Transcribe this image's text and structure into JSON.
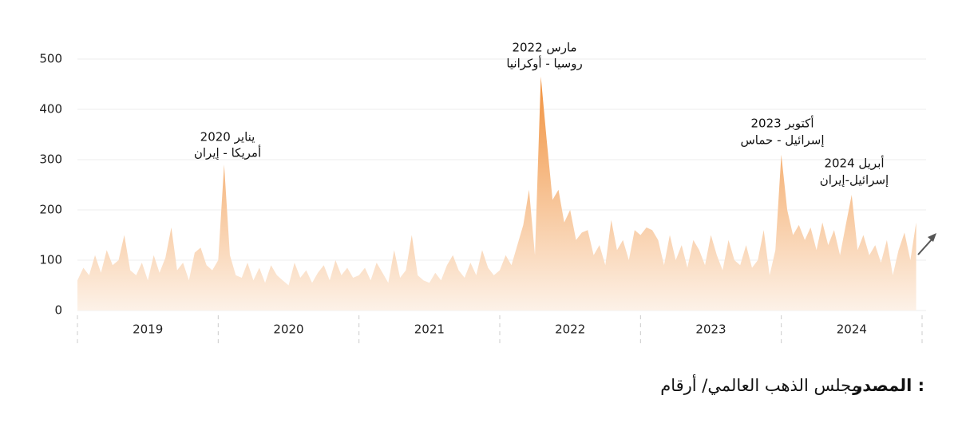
{
  "chart_data": {
    "type": "area",
    "x": [
      2019.0,
      2019.042,
      2019.083,
      2019.125,
      2019.167,
      2019.208,
      2019.25,
      2019.292,
      2019.333,
      2019.375,
      2019.417,
      2019.458,
      2019.5,
      2019.542,
      2019.583,
      2019.625,
      2019.667,
      2019.708,
      2019.75,
      2019.792,
      2019.833,
      2019.875,
      2019.917,
      2019.958,
      2020.0,
      2020.042,
      2020.083,
      2020.125,
      2020.167,
      2020.208,
      2020.25,
      2020.292,
      2020.333,
      2020.375,
      2020.417,
      2020.458,
      2020.5,
      2020.542,
      2020.583,
      2020.625,
      2020.667,
      2020.708,
      2020.75,
      2020.792,
      2020.833,
      2020.875,
      2020.917,
      2020.958,
      2021.0,
      2021.042,
      2021.083,
      2021.125,
      2021.167,
      2021.208,
      2021.25,
      2021.292,
      2021.333,
      2021.375,
      2021.417,
      2021.458,
      2021.5,
      2021.542,
      2021.583,
      2021.625,
      2021.667,
      2021.708,
      2021.75,
      2021.792,
      2021.833,
      2021.875,
      2021.917,
      2021.958,
      2022.0,
      2022.042,
      2022.083,
      2022.125,
      2022.167,
      2022.208,
      2022.25,
      2022.292,
      2022.333,
      2022.375,
      2022.417,
      2022.458,
      2022.5,
      2022.542,
      2022.583,
      2022.625,
      2022.667,
      2022.708,
      2022.75,
      2022.792,
      2022.833,
      2022.875,
      2022.917,
      2022.958,
      2023.0,
      2023.042,
      2023.083,
      2023.125,
      2023.167,
      2023.208,
      2023.25,
      2023.292,
      2023.333,
      2023.375,
      2023.417,
      2023.458,
      2023.5,
      2023.542,
      2023.583,
      2023.625,
      2023.667,
      2023.708,
      2023.75,
      2023.792,
      2023.833,
      2023.875,
      2023.917,
      2023.958,
      2024.0,
      2024.042,
      2024.083,
      2024.125,
      2024.167,
      2024.208,
      2024.25,
      2024.292,
      2024.333,
      2024.375,
      2024.417,
      2024.458,
      2024.5,
      2024.542,
      2024.583,
      2024.625,
      2024.667,
      2024.708,
      2024.75,
      2024.792,
      2024.833,
      2024.875,
      2024.917,
      2024.958
    ],
    "values": [
      60,
      85,
      70,
      110,
      75,
      120,
      90,
      100,
      150,
      80,
      70,
      95,
      60,
      110,
      75,
      105,
      165,
      80,
      95,
      60,
      115,
      125,
      90,
      80,
      100,
      290,
      110,
      70,
      65,
      95,
      60,
      85,
      55,
      90,
      70,
      60,
      50,
      95,
      65,
      80,
      55,
      75,
      90,
      60,
      100,
      70,
      85,
      65,
      70,
      85,
      60,
      95,
      75,
      55,
      120,
      65,
      80,
      150,
      70,
      60,
      55,
      75,
      60,
      90,
      110,
      80,
      65,
      95,
      70,
      120,
      85,
      70,
      80,
      110,
      90,
      130,
      170,
      240,
      110,
      465,
      340,
      220,
      240,
      175,
      200,
      140,
      155,
      160,
      110,
      130,
      90,
      180,
      120,
      140,
      100,
      160,
      150,
      165,
      160,
      140,
      90,
      150,
      100,
      130,
      85,
      140,
      120,
      90,
      150,
      110,
      80,
      140,
      100,
      90,
      130,
      85,
      100,
      160,
      70,
      120,
      310,
      200,
      150,
      170,
      140,
      165,
      120,
      175,
      130,
      160,
      110,
      170,
      230,
      120,
      150,
      110,
      130,
      95,
      140,
      70,
      120,
      155,
      100,
      175
    ],
    "xlim": [
      2019,
      2025
    ],
    "xticks": [
      2019,
      2020,
      2021,
      2022,
      2023,
      2024,
      2025
    ],
    "year_labels": [
      "2019",
      "2020",
      "2021",
      "2022",
      "2023",
      "2024"
    ],
    "ylim": [
      0,
      500
    ],
    "yticks": [
      0,
      100,
      200,
      300,
      400,
      500
    ],
    "grid": true,
    "color_top": "#f08a30",
    "color_bottom": "#fdf3ea",
    "annotations": [
      {
        "date": "يناير 2020",
        "event": "أمريكا - إيران"
      },
      {
        "date": "مارس 2022",
        "event": "روسيا - أوكرانيا"
      },
      {
        "date": "أكتوبر 2023",
        "event": "إسرائيل - حماس"
      },
      {
        "date": "أبريل 2024",
        "event": "إسرائيل-إيران"
      }
    ],
    "source_label": "المصدر :",
    "source": "مجلس الذهب العالمي/ أرقام"
  }
}
